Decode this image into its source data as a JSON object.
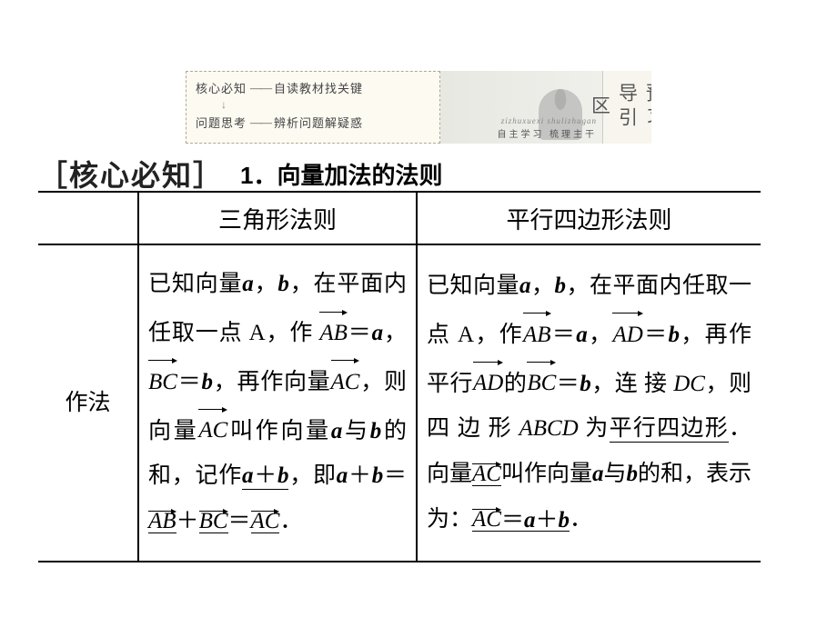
{
  "header": {
    "line1_key": "核心必知",
    "line1_desc": "自读教材找关键",
    "line2_key": "问题思考",
    "line2_desc": "辨析问题解疑惑",
    "dash": "——",
    "vertical": "预习导引区",
    "sub_pinyin": "zizhuxuexi shulizhugan",
    "sub_cn": "自主学习 梳理主干"
  },
  "section": {
    "bracket_label": "［核心必知］",
    "title": "1．向量加法的法则"
  },
  "table": {
    "row_label": "作法",
    "col1_header": "三角形法则",
    "col2_header": "平行四边形法则",
    "col1": {
      "t1": "已知向量",
      "a": "a",
      "comma": "，",
      "b": "b",
      "t2": "，在平面内任取一点 ",
      "A": "A",
      "t3": "，作",
      "AB": "AB",
      "eq": "＝",
      "BC": "BC",
      "t4": "，再作向量",
      "AC": "AC",
      "t5": "，则向量",
      "t6": "叫作向量",
      "t7": "与",
      "t8": "的和，记作",
      "aplusb": "a＋b",
      "t9": "，即",
      "final": "．"
    },
    "col2": {
      "t1": "已知向量",
      "a": "a",
      "comma": "，",
      "b": "b",
      "t2": "，在平面内任取一点 ",
      "A": "A",
      "t3": "，作",
      "AB": "AB",
      "eq": "＝",
      "AD": "AD",
      "t4": "，再作平行",
      "t5": "的",
      "BC": "BC",
      "t6": "，连 接 ",
      "DC": "DC",
      "t7": "，则 四 边 形",
      "ABCD": "ABCD",
      "t8": "为",
      "pxsbx": "平行四边形",
      "t9": "．向量",
      "AC": "AC",
      "t10": "叫作向量",
      "t11": "与",
      "t12": "的和，表示为：",
      "final": "．"
    }
  },
  "colors": {
    "text": "#000000",
    "border": "#000000",
    "header_bg": "#fdfaf2",
    "header_border": "#b0a890"
  }
}
